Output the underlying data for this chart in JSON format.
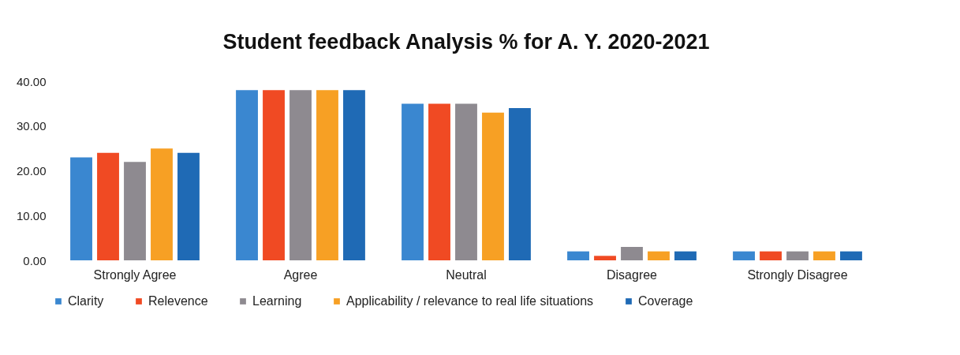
{
  "chart_data": {
    "type": "bar",
    "title": "Student feedback Analysis % for A. Y. 2020-2021",
    "categories": [
      "Strongly Agree",
      "Agree",
      "Neutral",
      "Disagree",
      "Strongly Disagree"
    ],
    "series": [
      {
        "name": "Clarity",
        "color": "#3a87d0",
        "values": [
          23,
          38,
          35,
          2,
          2
        ]
      },
      {
        "name": "Relevence",
        "color": "#f04a23",
        "values": [
          24,
          38,
          35,
          1,
          2
        ]
      },
      {
        "name": "Learning",
        "color": "#8e8a90",
        "values": [
          22,
          38,
          35,
          3,
          2
        ]
      },
      {
        "name": "Applicability / relevance to real life situations",
        "color": "#f7a024",
        "values": [
          25,
          38,
          33,
          2,
          2
        ]
      },
      {
        "name": "Coverage",
        "color": "#1f6ab5",
        "values": [
          24,
          38,
          34,
          2,
          2
        ]
      }
    ],
    "ylim": [
      0,
      40
    ],
    "yticks": [
      {
        "value": 0,
        "label": "0.00"
      },
      {
        "value": 10,
        "label": "10.00"
      },
      {
        "value": 20,
        "label": "20.00"
      },
      {
        "value": 30,
        "label": "30.00"
      },
      {
        "value": 40,
        "label": "40.00"
      }
    ],
    "grid": false,
    "legend": "bottom"
  }
}
